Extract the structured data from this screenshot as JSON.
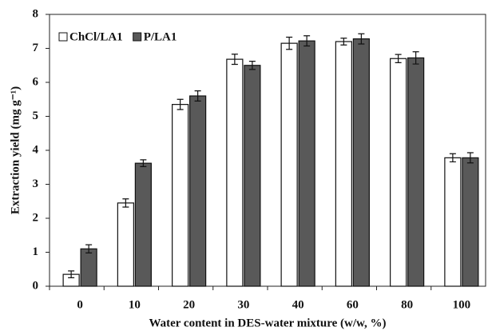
{
  "chart_data": {
    "type": "bar",
    "xlabel": "Water content in DES-water mixture (w/w, %)",
    "ylabel": "Extraction yield (mg g⁻¹)",
    "categories": [
      "0",
      "10",
      "20",
      "30",
      "40",
      "60",
      "80",
      "100"
    ],
    "series": [
      {
        "name": "ChCl/LA1",
        "color": "#ffffff",
        "values": [
          0.35,
          2.45,
          5.35,
          6.68,
          7.15,
          7.2,
          6.7,
          3.78
        ],
        "errors": [
          0.1,
          0.12,
          0.15,
          0.15,
          0.18,
          0.1,
          0.12,
          0.12
        ]
      },
      {
        "name": "P/LA1",
        "color": "#595959",
        "values": [
          1.1,
          3.62,
          5.6,
          6.5,
          7.22,
          7.28,
          6.72,
          3.78
        ],
        "errors": [
          0.12,
          0.1,
          0.15,
          0.12,
          0.15,
          0.15,
          0.18,
          0.15
        ]
      }
    ],
    "ylim": [
      0,
      8
    ],
    "yticks": [
      0,
      1,
      2,
      3,
      4,
      5,
      6,
      7,
      8
    ],
    "legend": "top-left"
  }
}
